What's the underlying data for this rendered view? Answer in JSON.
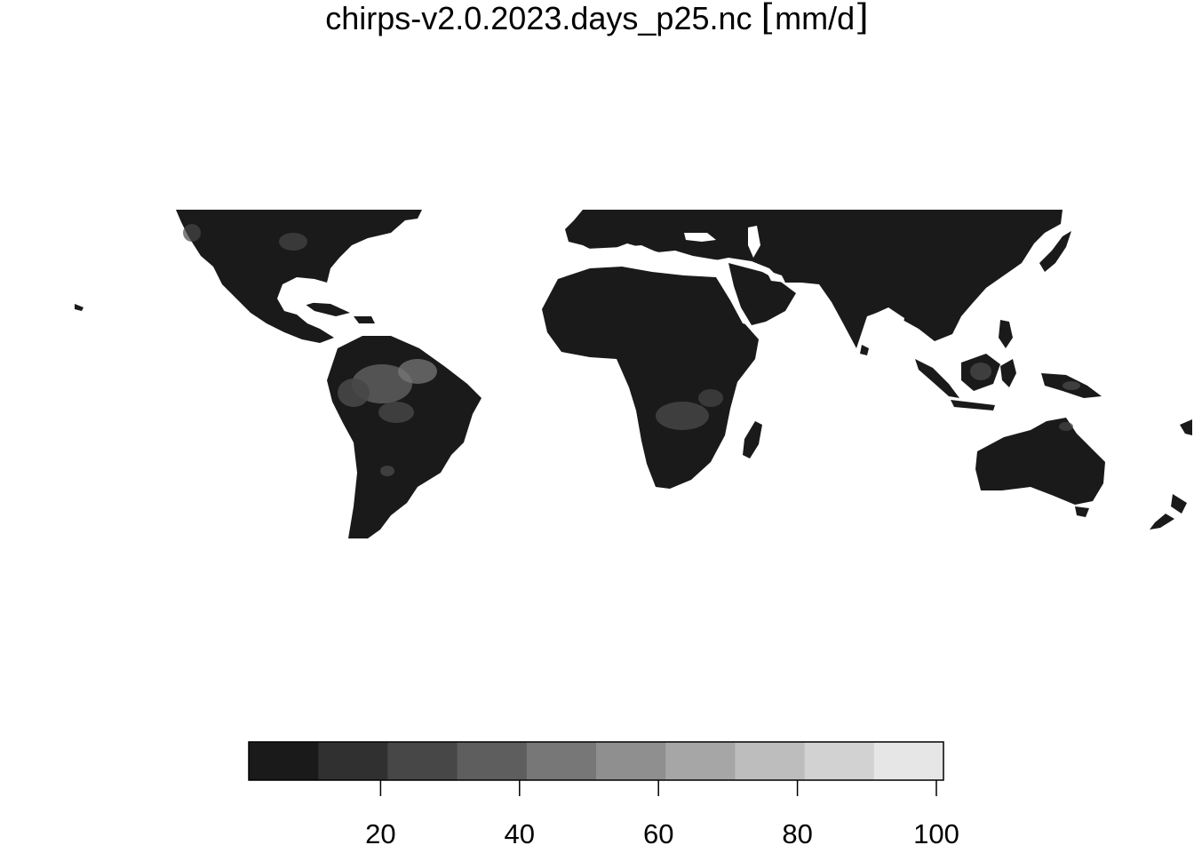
{
  "title": {
    "filename": "chirps-v2.0.2023.days_p25.nc",
    "unit_open": "[",
    "unit": "mm/d",
    "unit_close": "]"
  },
  "legend": {
    "colors": [
      "#1a1a1a",
      "#303030",
      "#474747",
      "#5e5e5e",
      "#777777",
      "#8f8f8f",
      "#a6a6a6",
      "#bdbdbd",
      "#d2d2d2",
      "#e6e6e6"
    ],
    "range": [
      0,
      100
    ],
    "ticks": [
      "20",
      "40",
      "60",
      "80",
      "100"
    ]
  },
  "map": {
    "land_color": "#1a1a1a",
    "ocean_color": "#ffffff",
    "highlight_colors": [
      "#474747",
      "#5e5e5e",
      "#777777"
    ]
  }
}
